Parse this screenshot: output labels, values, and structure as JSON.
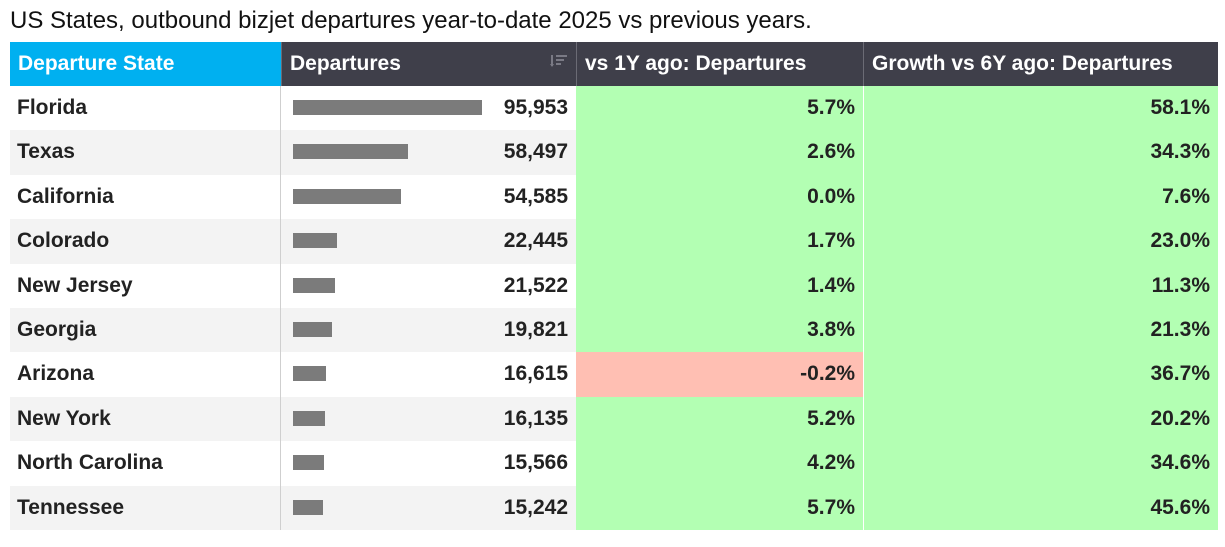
{
  "title": "US States, outbound bizjet departures year-to-date 2025 vs previous years.",
  "headers": {
    "state": "Departure State",
    "departures": "Departures",
    "vs1y": "vs 1Y ago: Departures",
    "vs6y": "Growth vs 6Y ago: Departures"
  },
  "colors": {
    "header_highlight": "#00b0f0",
    "header_dark": "#3f3f4a",
    "positive": "#b3ffb3",
    "negative": "#ffbfb3",
    "bar": "#7b7b7b"
  },
  "chart_data": {
    "type": "table",
    "columns": [
      "Departure State",
      "Departures",
      "vs 1Y ago: Departures",
      "Growth vs 6Y ago: Departures"
    ],
    "rows": [
      {
        "state": "Florida",
        "departures": 95953,
        "departures_label": "95,953",
        "vs1y": 5.7,
        "vs1y_label": "5.7%",
        "vs6y": 58.1,
        "vs6y_label": "58.1%"
      },
      {
        "state": "Texas",
        "departures": 58497,
        "departures_label": "58,497",
        "vs1y": 2.6,
        "vs1y_label": "2.6%",
        "vs6y": 34.3,
        "vs6y_label": "34.3%"
      },
      {
        "state": "California",
        "departures": 54585,
        "departures_label": "54,585",
        "vs1y": 0.0,
        "vs1y_label": "0.0%",
        "vs6y": 7.6,
        "vs6y_label": "7.6%"
      },
      {
        "state": "Colorado",
        "departures": 22445,
        "departures_label": "22,445",
        "vs1y": 1.7,
        "vs1y_label": "1.7%",
        "vs6y": 23.0,
        "vs6y_label": "23.0%"
      },
      {
        "state": "New Jersey",
        "departures": 21522,
        "departures_label": "21,522",
        "vs1y": 1.4,
        "vs1y_label": "1.4%",
        "vs6y": 11.3,
        "vs6y_label": "11.3%"
      },
      {
        "state": "Georgia",
        "departures": 19821,
        "departures_label": "19,821",
        "vs1y": 3.8,
        "vs1y_label": "3.8%",
        "vs6y": 21.3,
        "vs6y_label": "21.3%"
      },
      {
        "state": "Arizona",
        "departures": 16615,
        "departures_label": "16,615",
        "vs1y": -0.2,
        "vs1y_label": "-0.2%",
        "vs6y": 36.7,
        "vs6y_label": "36.7%"
      },
      {
        "state": "New York",
        "departures": 16135,
        "departures_label": "16,135",
        "vs1y": 5.2,
        "vs1y_label": "5.2%",
        "vs6y": 20.2,
        "vs6y_label": "20.2%"
      },
      {
        "state": "North Carolina",
        "departures": 15566,
        "departures_label": "15,566",
        "vs1y": 4.2,
        "vs1y_label": "4.2%",
        "vs6y": 34.6,
        "vs6y_label": "34.6%"
      },
      {
        "state": "Tennessee",
        "departures": 15242,
        "departures_label": "15,242",
        "vs1y": 5.7,
        "vs1y_label": "5.7%",
        "vs6y": 45.6,
        "vs6y_label": "45.6%"
      }
    ]
  }
}
